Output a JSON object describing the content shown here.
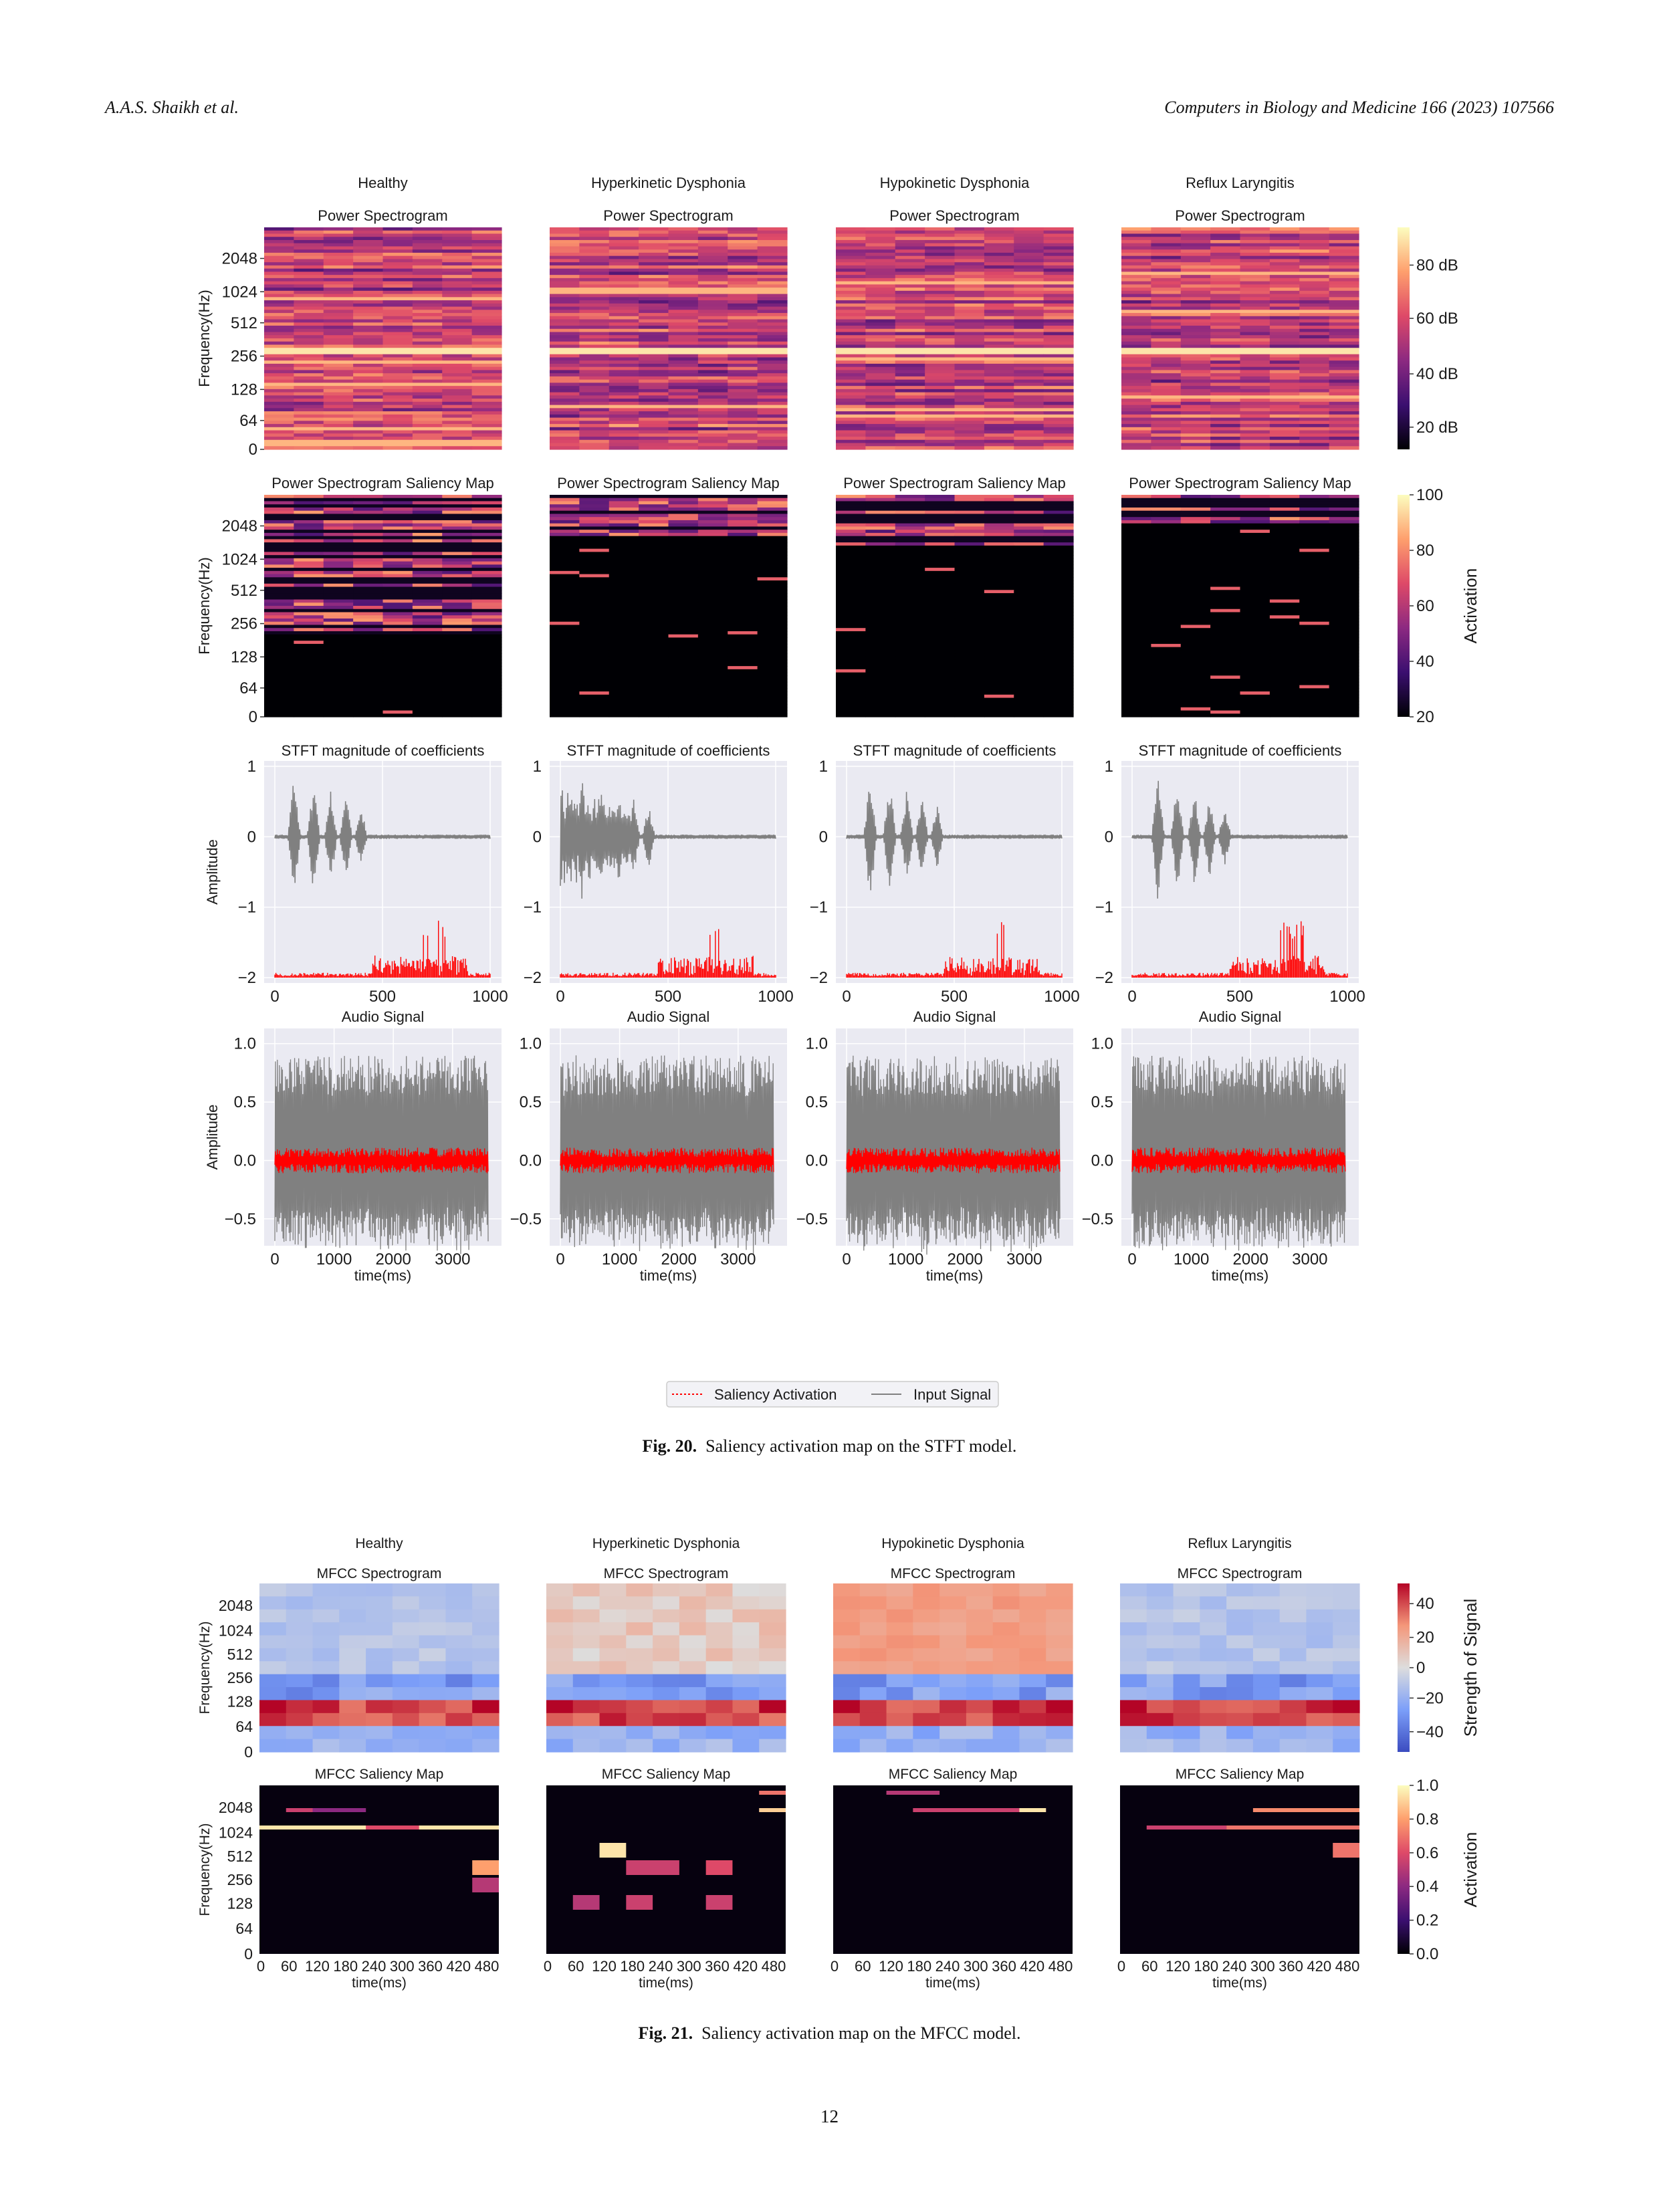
{
  "header": {
    "authors": "A.A.S. Shaikh et al.",
    "journal": "Computers in Biology and Medicine 166 (2023) 107566"
  },
  "page_number": "12",
  "fig20": {
    "caption_label": "Fig. 20.",
    "caption_text": "Saliency activation map on the STFT model.",
    "columns": [
      "Healthy",
      "Hyperkinetic Dysphonia",
      "Hypokinetic Dysphonia",
      "Reflux Laryngitis"
    ],
    "row_titles": {
      "power": "Power Spectrogram",
      "power_saliency": "Power Spectrogram Saliency Map",
      "stft": "STFT magnitude of coefficients",
      "audio": "Audio Signal"
    },
    "ylabel_freq": "Frequency(Hz)",
    "ylabel_amp": "Amplitude",
    "xlabel_time": "time(ms)",
    "freq_ticks": [
      "2048",
      "1024",
      "512",
      "256",
      "128",
      "64",
      "0"
    ],
    "power_colorbar": {
      "ticks": [
        "80 dB",
        "60 dB",
        "40 dB",
        "20 dB"
      ],
      "range": [
        15,
        95
      ],
      "colormap": "magma"
    },
    "saliency_colorbar": {
      "label": "Activation",
      "ticks": [
        "100",
        "80",
        "60",
        "40",
        "20"
      ],
      "range": [
        20,
        100
      ],
      "colormap": "magma"
    },
    "stft_yticks": [
      "1",
      "0",
      "−1",
      "−2"
    ],
    "stft_xticks": [
      "0",
      "500",
      "1000"
    ],
    "audio_xticks": [
      "0",
      "1000",
      "2000",
      "3000"
    ],
    "audio_yticks": [
      [
        "1.0",
        "0.5",
        "0.0",
        "−0.5"
      ],
      [
        "1.0",
        "0.5",
        "0.0",
        "−0.5"
      ],
      [
        "1.0",
        "0.5",
        "0.0",
        "−0.5"
      ],
      [
        "1.0",
        "0.5",
        "0.0",
        "−0.5"
      ]
    ],
    "legend": {
      "saliency": "Saliency Activation",
      "input": "Input Signal"
    },
    "colors": {
      "saliency": "#ff0000",
      "input": "#808080",
      "plot_bg": "#eaeaf2"
    }
  },
  "fig21": {
    "caption_label": "Fig. 21.",
    "caption_text": "Saliency activation map on the MFCC model.",
    "columns": [
      "Healthy",
      "Hyperkinetic Dysphonia",
      "Hypokinetic Dysphonia",
      "Reflux Laryngitis"
    ],
    "row_titles": {
      "mfcc": "MFCC Spectrogram",
      "mfcc_saliency": "MFCC Saliency Map"
    },
    "ylabel_freq": "Frequency(Hz)",
    "xlabel_time": "time(ms)",
    "freq_ticks": [
      "2048",
      "1024",
      "512",
      "256",
      "128",
      "64",
      "0"
    ],
    "time_ticks": [
      "0",
      "60",
      "120",
      "180",
      "240",
      "300",
      "360",
      "420",
      "480"
    ],
    "mfcc_colorbar": {
      "label": "Strength of Signal",
      "ticks": [
        "40",
        "20",
        "0",
        "−20",
        "−40"
      ],
      "range": [
        -50,
        50
      ],
      "colormap": "coolwarm"
    },
    "saliency_colorbar": {
      "label": "Activation",
      "ticks": [
        "1.0",
        "0.8",
        "0.6",
        "0.4",
        "0.2",
        "0.0"
      ],
      "range": [
        0,
        1
      ],
      "colormap": "magma"
    }
  }
}
